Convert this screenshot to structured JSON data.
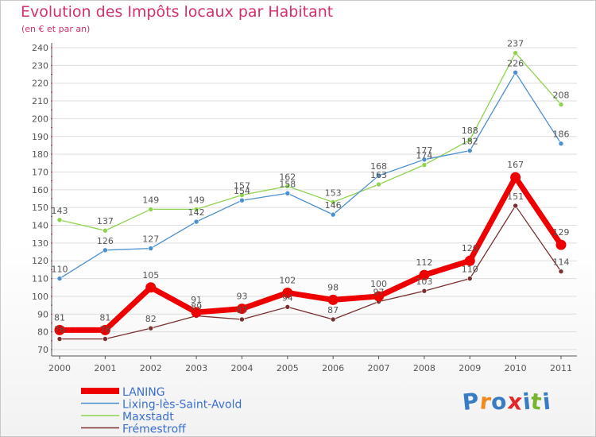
{
  "header": {
    "title": "Evolution des Impôts locaux par Habitant",
    "subtitle": "(en € et par an)"
  },
  "colors": {
    "title": "#d4306f",
    "axis": "#555555",
    "grid": "#dddddd",
    "tick_mark": "#d4306f",
    "label": "#555555"
  },
  "logo": {
    "letters": [
      "P",
      "r",
      "o",
      "x",
      "i",
      "t",
      "i"
    ],
    "colors": [
      "#3a7cc4",
      "#f08a1c",
      "#3a7cc4",
      "#e2262a",
      "#3a7cc4",
      "#79b52c",
      "#3a7cc4"
    ]
  },
  "chart_data": {
    "type": "line",
    "title": "Evolution des Impôts locaux par Habitant",
    "subtitle": "(en € et par an)",
    "xlabel": "",
    "ylabel": "",
    "x": [
      "2000",
      "2001",
      "2002",
      "2003",
      "2004",
      "2005",
      "2006",
      "2007",
      "2008",
      "2009",
      "2010",
      "2011"
    ],
    "ylim": [
      70,
      240
    ],
    "yticks": [
      70,
      80,
      90,
      100,
      110,
      120,
      130,
      140,
      150,
      160,
      170,
      180,
      190,
      200,
      210,
      220,
      230,
      240
    ],
    "grid": "horizontal",
    "legend_position": "bottom-left",
    "series": [
      {
        "name": "Frémestroff",
        "color": "#7a2f2f",
        "width": "thin",
        "label_position": "above",
        "values": [
          76,
          76,
          82,
          89,
          87,
          94,
          87,
          97,
          103,
          110,
          151,
          114
        ]
      },
      {
        "name": "Maxstadt",
        "color": "#8ed34e",
        "width": "thin",
        "label_position": "above",
        "values": [
          143,
          137,
          149,
          149,
          157,
          162,
          153,
          163,
          174,
          188,
          237,
          208
        ]
      },
      {
        "name": "Lixing-lès-Saint-Avold",
        "color": "#4a8fd0",
        "width": "thin",
        "label_position": "above",
        "values": [
          110,
          126,
          127,
          142,
          154,
          158,
          146,
          168,
          177,
          182,
          226,
          186
        ]
      },
      {
        "name": "LANING",
        "color": "#ee0000",
        "width": "thick",
        "label_position": "above",
        "values": [
          81,
          81,
          105,
          91,
          93,
          102,
          98,
          100,
          112,
          120,
          167,
          129
        ]
      }
    ],
    "legend_order": [
      "LANING",
      "Lixing-lès-Saint-Avold",
      "Maxstadt",
      "Frémestroff"
    ]
  }
}
